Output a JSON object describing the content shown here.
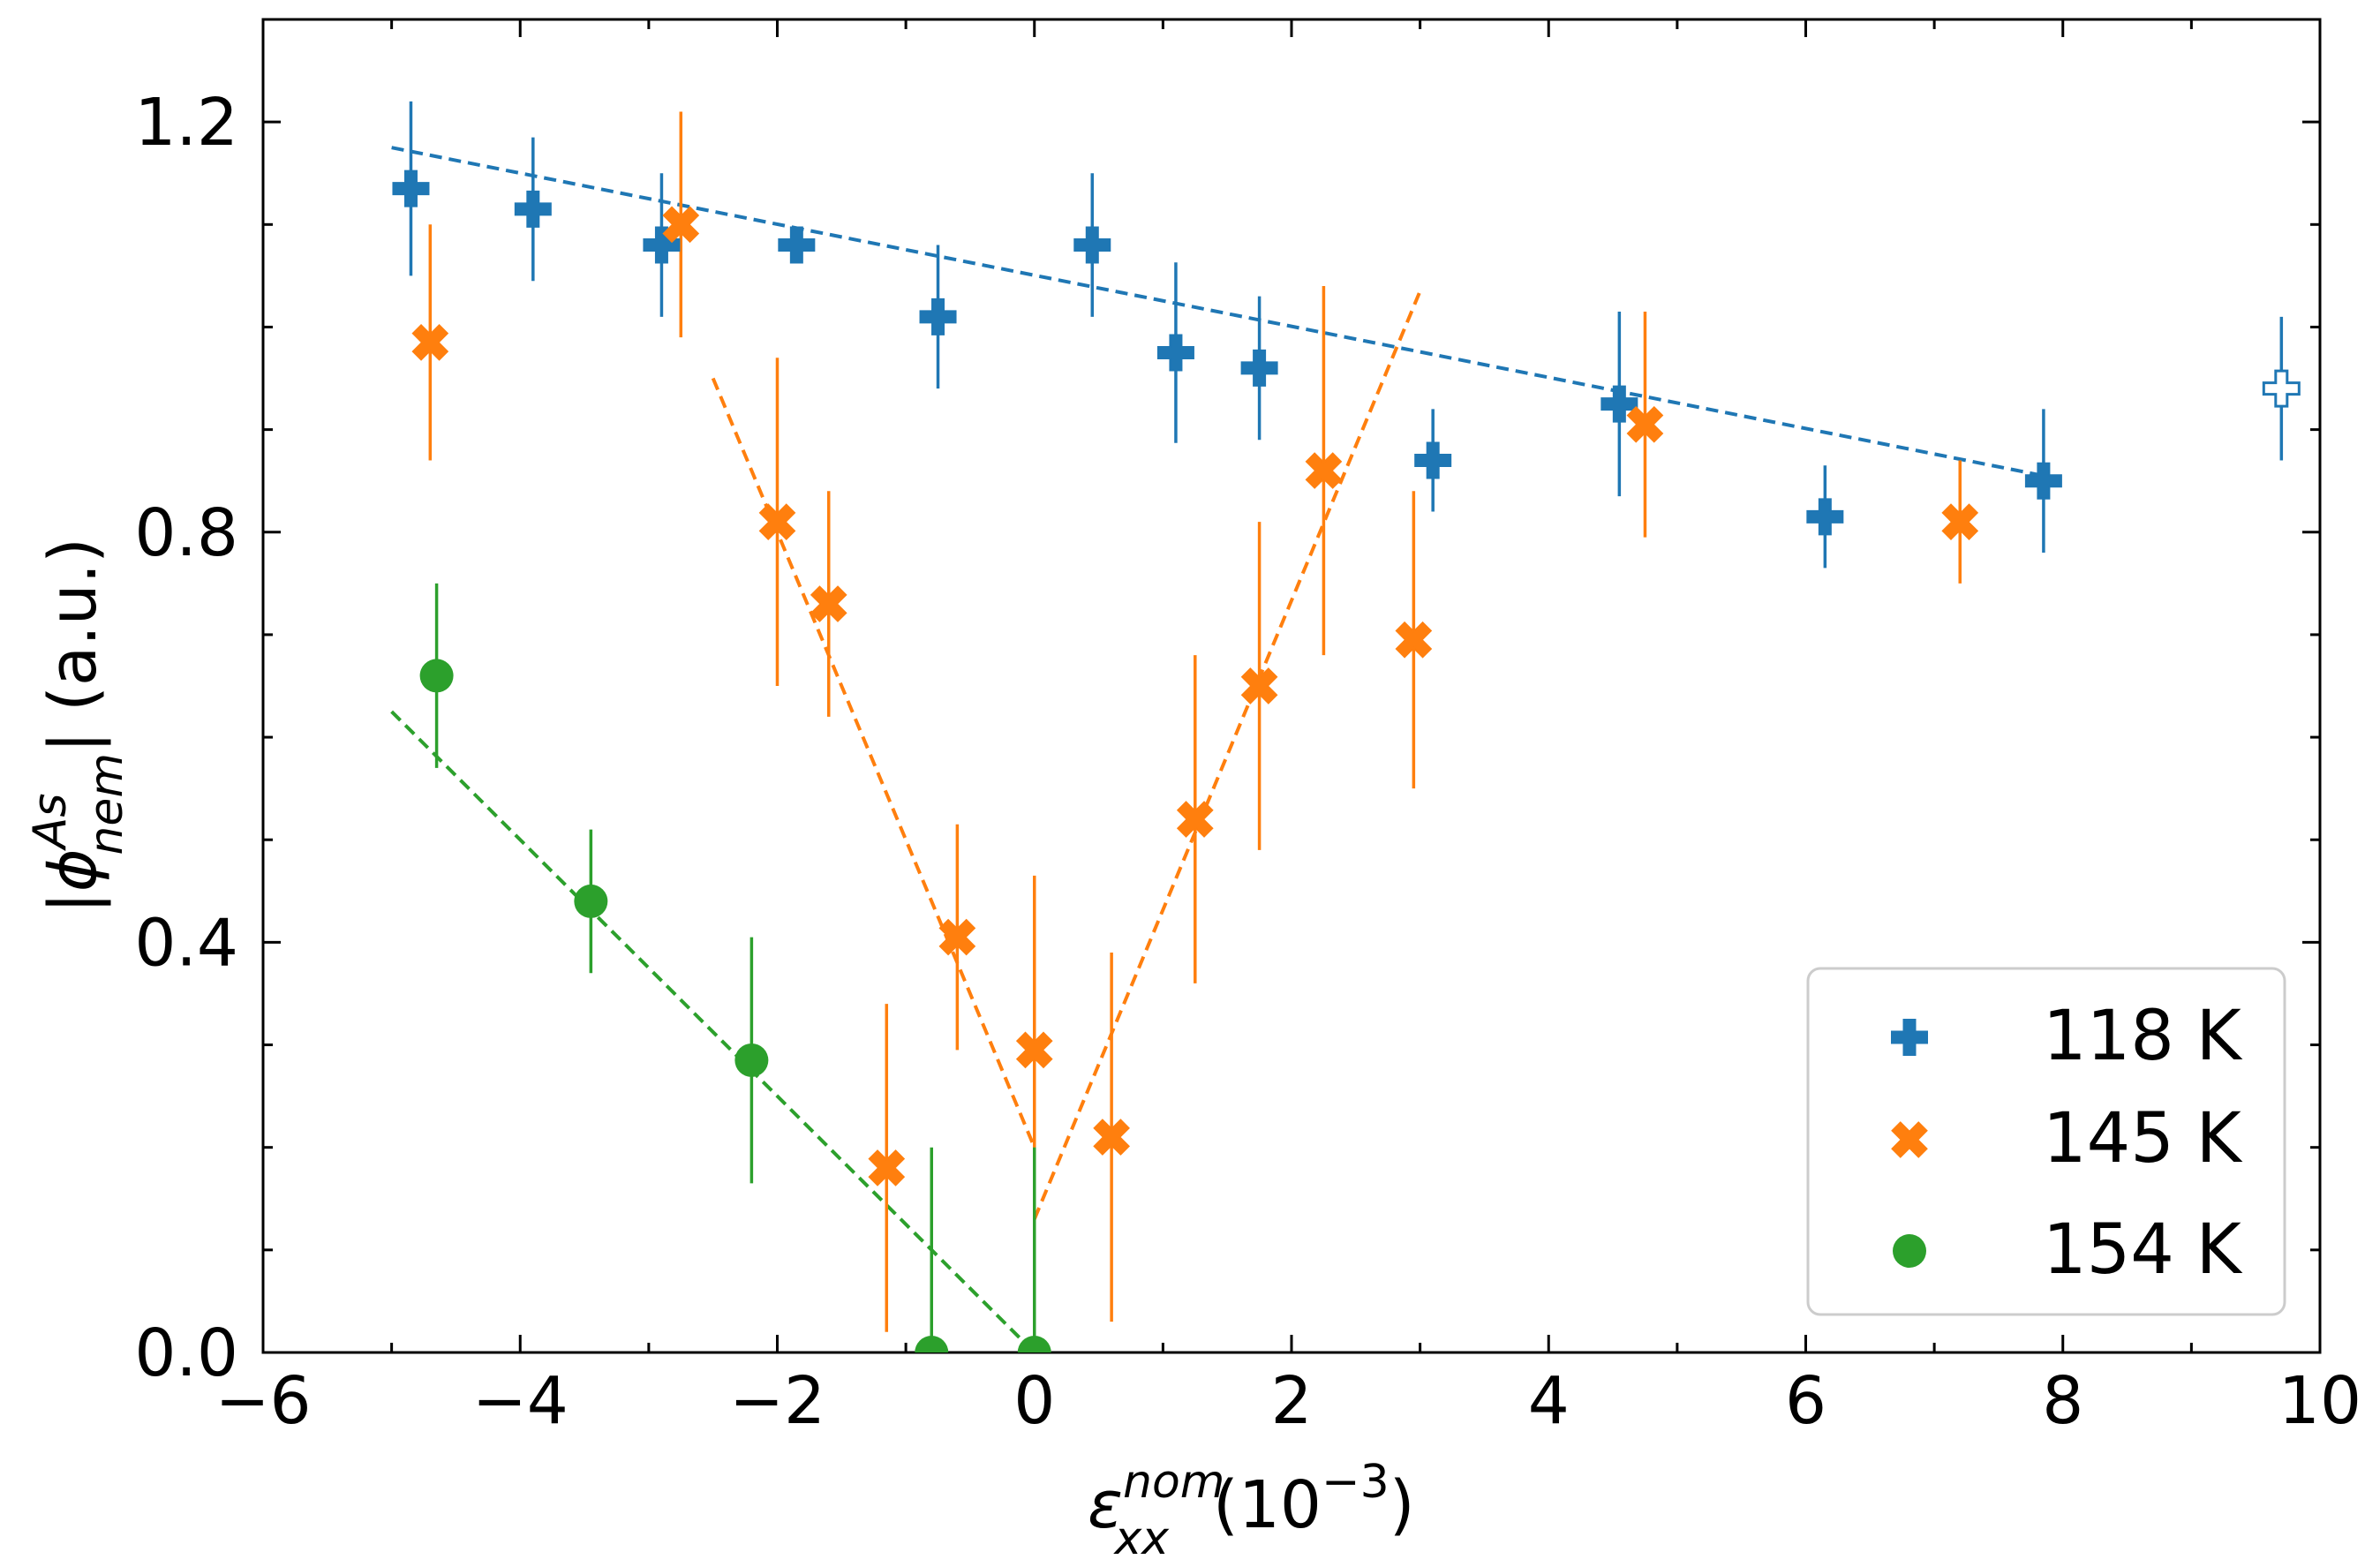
{
  "chart_data": {
    "type": "scatter",
    "title": "",
    "xlabel": {
      "symbol": "ε",
      "superscript": "nom",
      "subscript": "xx",
      "units": "(10",
      "units_exponent": "−3",
      "units_close": ")"
    },
    "ylabel": {
      "open": "|",
      "symbol": "ϕ",
      "superscript": "As",
      "subscript": "nem",
      "close": "|",
      "units": "(a.u.)"
    },
    "xlim": [
      -6,
      10
    ],
    "ylim": [
      0,
      1.3
    ],
    "xticks": [
      -6,
      -4,
      -2,
      0,
      2,
      4,
      6,
      8,
      10
    ],
    "xtick_labels": [
      "−6",
      "−4",
      "−2",
      "0",
      "2",
      "4",
      "6",
      "8",
      "10"
    ],
    "xminor": [
      -5,
      -3,
      -1,
      1,
      3,
      5,
      7,
      9
    ],
    "yticks": [
      0,
      0.4,
      0.8,
      1.2
    ],
    "ytick_labels": [
      "0.0",
      "0.4",
      "0.8",
      "1.2"
    ],
    "yminor": [
      0.1,
      0.2,
      0.3,
      0.5,
      0.6,
      0.7,
      0.9,
      1.0,
      1.1
    ],
    "grid": false,
    "legend_position": "bottom-right",
    "series": [
      {
        "name": "118 K",
        "color": "#1f77b4",
        "marker": "plus",
        "points": [
          {
            "x": -4.85,
            "y": 1.135,
            "err": 0.085
          },
          {
            "x": -3.9,
            "y": 1.115,
            "err": 0.07
          },
          {
            "x": -2.9,
            "y": 1.08,
            "err": 0.07
          },
          {
            "x": -1.85,
            "y": 1.08,
            "err": 0.0
          },
          {
            "x": -0.75,
            "y": 1.01,
            "err": 0.07
          },
          {
            "x": 0.45,
            "y": 1.08,
            "err": 0.07
          },
          {
            "x": 1.1,
            "y": 0.975,
            "err": 0.088
          },
          {
            "x": 1.75,
            "y": 0.96,
            "err": 0.07
          },
          {
            "x": 3.1,
            "y": 0.87,
            "err": 0.05
          },
          {
            "x": 4.55,
            "y": 0.925,
            "err": 0.09
          },
          {
            "x": 6.15,
            "y": 0.815,
            "err": 0.05
          },
          {
            "x": 7.85,
            "y": 0.85,
            "err": 0.07
          }
        ],
        "open_points": [
          {
            "x": 9.7,
            "y": 0.94,
            "err": 0.07
          }
        ],
        "fit": {
          "x": [
            -5.0,
            7.85
          ],
          "y": [
            1.175,
            0.855
          ]
        }
      },
      {
        "name": "145 K",
        "color": "#ff7f0e",
        "marker": "x",
        "points": [
          {
            "x": -4.7,
            "y": 0.985,
            "err": 0.115
          },
          {
            "x": -2.75,
            "y": 1.1,
            "err": 0.11
          },
          {
            "x": -2.0,
            "y": 0.81,
            "err": 0.16
          },
          {
            "x": -1.6,
            "y": 0.73,
            "err": 0.11
          },
          {
            "x": -1.15,
            "y": 0.18,
            "err": 0.16
          },
          {
            "x": -0.6,
            "y": 0.405,
            "err": 0.11
          },
          {
            "x": 0.0,
            "y": 0.295,
            "err": 0.17
          },
          {
            "x": 0.6,
            "y": 0.21,
            "err": 0.18
          },
          {
            "x": 1.25,
            "y": 0.52,
            "err": 0.16
          },
          {
            "x": 1.75,
            "y": 0.65,
            "err": 0.16
          },
          {
            "x": 2.25,
            "y": 0.86,
            "err": 0.18
          },
          {
            "x": 2.95,
            "y": 0.695,
            "err": 0.145
          },
          {
            "x": 4.75,
            "y": 0.905,
            "err": 0.11
          },
          {
            "x": 7.2,
            "y": 0.81,
            "err": 0.06
          }
        ],
        "fits": [
          {
            "x": [
              -2.5,
              0.0
            ],
            "y": [
              0.95,
              0.2
            ]
          },
          {
            "x": [
              0.0,
              3.0
            ],
            "y": [
              0.13,
              1.035
            ]
          }
        ]
      },
      {
        "name": "154 K",
        "color": "#2ca02c",
        "marker": "circle",
        "points": [
          {
            "x": -4.65,
            "y": 0.66,
            "err": 0.09
          },
          {
            "x": -3.45,
            "y": 0.44,
            "err": 0.07
          },
          {
            "x": -2.2,
            "y": 0.285,
            "err": 0.12
          },
          {
            "x": -0.8,
            "y": 0.0,
            "err": 0.2
          },
          {
            "x": 0.0,
            "y": 0.0,
            "err": 0.2
          }
        ],
        "fit": {
          "x": [
            -5.0,
            0.0
          ],
          "y": [
            0.625,
            0.0
          ]
        }
      }
    ]
  }
}
